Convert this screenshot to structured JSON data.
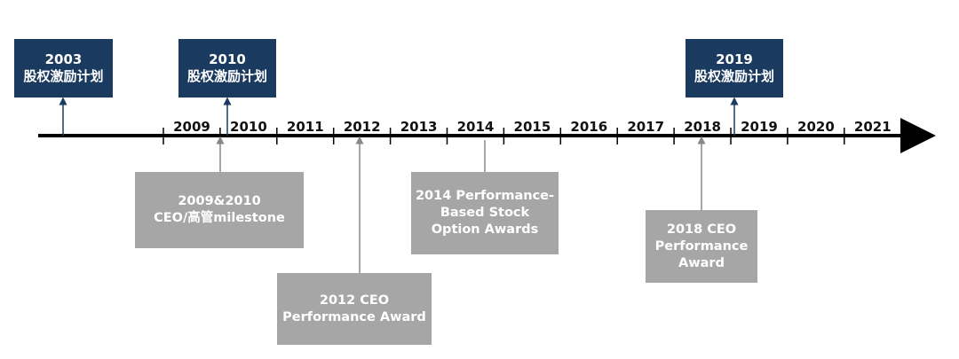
{
  "years": [
    "2009",
    "2010",
    "2011",
    "2012",
    "2013",
    "2014",
    "2015",
    "2016",
    "2017",
    "2018",
    "2019",
    "2020",
    "2021"
  ],
  "plans": [
    {
      "year": "2003",
      "label": "股权激励计划"
    },
    {
      "year": "2010",
      "label": "股权激励计划"
    },
    {
      "year": "2019",
      "label": "股权激励计划"
    }
  ],
  "awards": [
    {
      "lines": [
        "2009&2010",
        "CEO/高管milestone"
      ]
    },
    {
      "lines": [
        "2012 CEO",
        "Performance Award"
      ]
    },
    {
      "lines": [
        "2014 Performance-",
        "Based Stock",
        "Option Awards"
      ]
    },
    {
      "lines": [
        "2018 CEO",
        "Performance",
        "Award"
      ]
    }
  ],
  "colors": {
    "plan": "#1b3a5f",
    "award": "#a6a6a6",
    "axis": "#000000"
  }
}
